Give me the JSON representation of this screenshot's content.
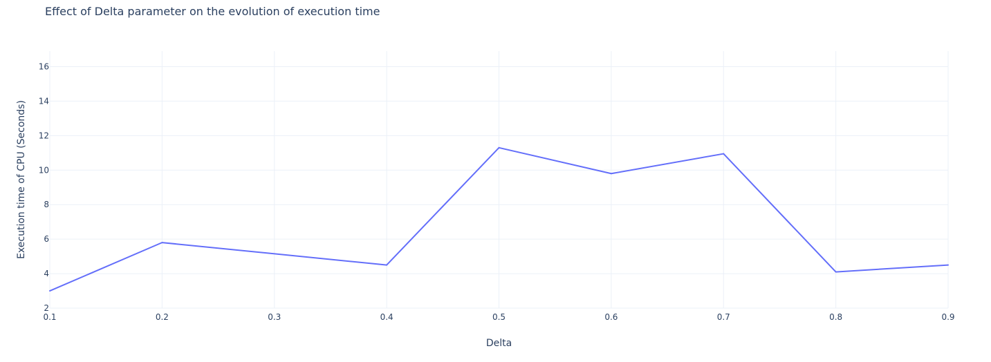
{
  "chart_data": {
    "type": "line",
    "title": "Effect of Delta parameter on the evolution of execution time",
    "xlabel": "Delta",
    "ylabel": "Execution time of CPU (Seconds)",
    "x": [
      0.1,
      0.2,
      0.4,
      0.5,
      0.6,
      0.7,
      0.8,
      0.9
    ],
    "series": [
      {
        "values": [
          3.0,
          5.8,
          4.5,
          11.3,
          9.8,
          10.95,
          4.1,
          4.5
        ],
        "color": "#636efa"
      }
    ],
    "xlim": [
      0.1,
      0.9
    ],
    "ylim": [
      2,
      16.9
    ],
    "xticks": [
      "0.1",
      "0.2",
      "0.3",
      "0.4",
      "0.5",
      "0.6",
      "0.7",
      "0.8",
      "0.9"
    ],
    "yticks": [
      "2",
      "4",
      "6",
      "8",
      "10",
      "12",
      "14",
      "16"
    ],
    "grid": true,
    "legend": "none"
  }
}
